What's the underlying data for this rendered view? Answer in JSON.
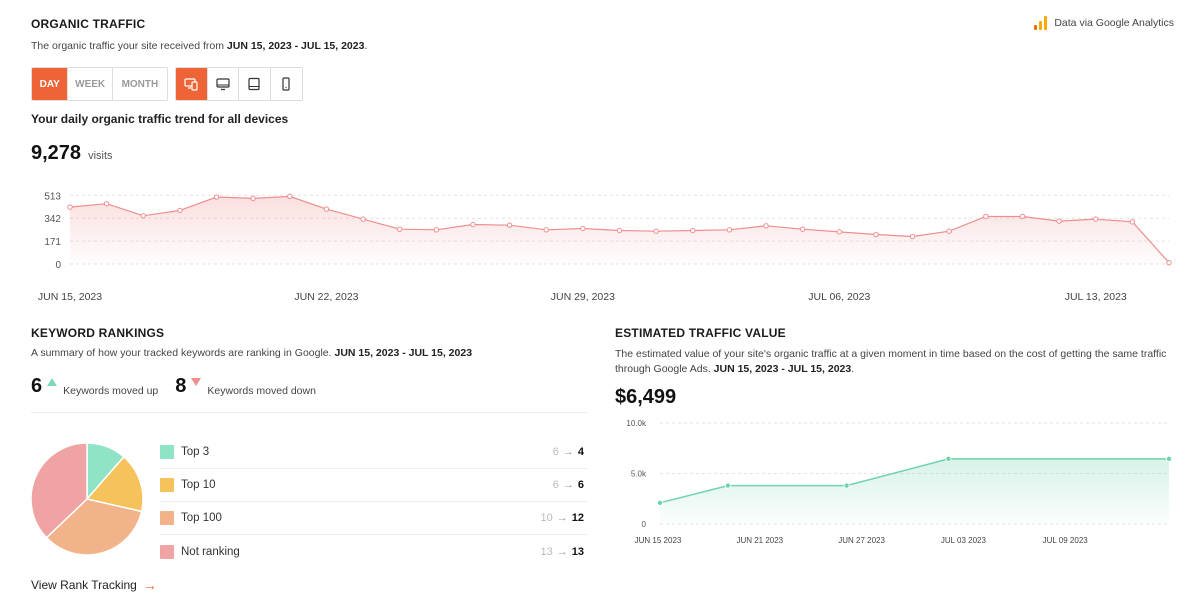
{
  "organic": {
    "title": "ORGANIC TRAFFIC",
    "subtitle_prefix": "The organic traffic your site received from ",
    "date_range": "JUN 15, 2023 - JUL 15, 2023",
    "subtitle_suffix": ".",
    "source_label": "Data via Google Analytics",
    "brand_colors": {
      "accent": "#ef6436",
      "ga_orange": "#f9ab00",
      "ga_dark": "#e37400"
    },
    "periods": [
      "DAY",
      "WEEK",
      "MONTH"
    ],
    "active_period": "DAY",
    "devices": [
      {
        "name": "all-devices-icon",
        "active": true
      },
      {
        "name": "desktop-icon",
        "active": false
      },
      {
        "name": "tablet-icon",
        "active": false
      },
      {
        "name": "mobile-icon",
        "active": false
      }
    ],
    "trend_label": "Your daily organic traffic trend for all devices",
    "visits_value": "9,278",
    "visits_unit": "visits"
  },
  "keywords": {
    "title": "KEYWORD RANKINGS",
    "subtitle_prefix": "A summary of how your tracked keywords are ranking in Google. ",
    "date_range": "JUN 15, 2023 - JUL 15, 2023",
    "moved_up_count": "6",
    "moved_up_label": "Keywords moved up",
    "moved_down_count": "8",
    "moved_down_label": "Keywords moved down",
    "legend": [
      {
        "label": "Top 3",
        "from": "6",
        "to": "4",
        "color": "#8ee4c4"
      },
      {
        "label": "Top 10",
        "from": "6",
        "to": "6",
        "color": "#f5c25b"
      },
      {
        "label": "Top 100",
        "from": "10",
        "to": "12",
        "color": "#f2b38a"
      },
      {
        "label": "Not ranking",
        "from": "13",
        "to": "13",
        "color": "#f0a3a3"
      }
    ],
    "arrow_glyph": "→",
    "link_label": "View Rank Tracking",
    "link_arrow": "→"
  },
  "value": {
    "title": "ESTIMATED TRAFFIC VALUE",
    "subtitle_line1": "The estimated value of your site's organic traffic at a given moment in time based on the cost of getting the same traffic",
    "subtitle_line2_prefix": "through Google Ads. ",
    "date_range": "JUN 15, 2023 - JUL 15, 2023",
    "subtitle_suffix": ".",
    "amount": "$6,499"
  },
  "chart_data": [
    {
      "id": "organic-traffic",
      "type": "area",
      "title": "Your daily organic traffic trend for all devices",
      "xlabel": "",
      "ylabel": "",
      "ylim": [
        0,
        560
      ],
      "yticks": [
        0,
        171,
        342,
        513
      ],
      "x_tick_labels": [
        {
          "label": "JUN 15, 2023",
          "index": 0
        },
        {
          "label": "JUN 22, 2023",
          "index": 7
        },
        {
          "label": "JUN 29, 2023",
          "index": 14
        },
        {
          "label": "JUL 06, 2023",
          "index": 21
        },
        {
          "label": "JUL 13, 2023",
          "index": 28
        }
      ],
      "color": "#ee8e8e",
      "grid": true,
      "values": [
        425,
        450,
        360,
        400,
        500,
        490,
        505,
        410,
        335,
        260,
        255,
        295,
        290,
        255,
        265,
        250,
        245,
        250,
        255,
        285,
        260,
        240,
        220,
        205,
        245,
        355,
        355,
        320,
        335,
        315,
        10
      ]
    },
    {
      "id": "traffic-value",
      "type": "area",
      "title": "ESTIMATED TRAFFIC VALUE",
      "xlabel": "",
      "ylabel": "",
      "ylim": [
        0,
        10000
      ],
      "yticks": [
        0,
        5000,
        10000
      ],
      "ytick_labels": [
        "0",
        "5.0k",
        "10.0k"
      ],
      "x_tick_labels": [
        {
          "label": "JUN 15 2023",
          "index": 0
        },
        {
          "label": "JUN 21 2023",
          "index": 6
        },
        {
          "label": "JUN 27 2023",
          "index": 12
        },
        {
          "label": "JUL 03 2023",
          "index": 18
        },
        {
          "label": "JUL 09 2023",
          "index": 24
        }
      ],
      "x_count": 31,
      "points": [
        {
          "index": 0,
          "value": 2100
        },
        {
          "index": 4,
          "value": 3800
        },
        {
          "index": 11,
          "value": 3800
        },
        {
          "index": 17,
          "value": 6450
        },
        {
          "index": 30,
          "value": 6450
        }
      ],
      "color": "#6fd3ad",
      "grid": true
    },
    {
      "id": "keyword-pie",
      "type": "pie",
      "title": "KEYWORD RANKINGS",
      "categories": [
        "Top 3",
        "Top 10",
        "Top 100",
        "Not ranking"
      ],
      "values": [
        4,
        6,
        12,
        13
      ],
      "colors": [
        "#8ee4c4",
        "#f5c25b",
        "#f2b38a",
        "#f0a3a3"
      ]
    }
  ]
}
